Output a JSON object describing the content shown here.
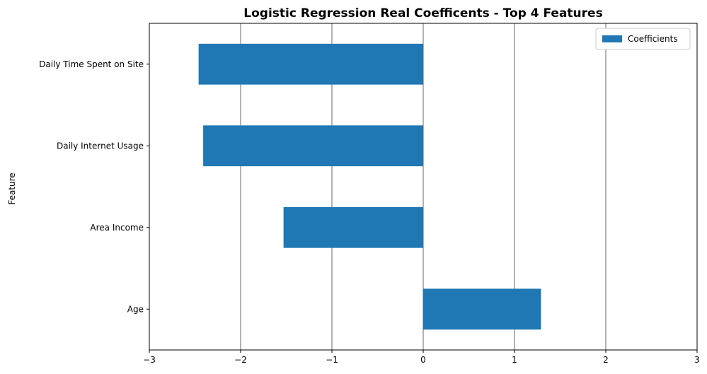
{
  "chart_data": {
    "type": "bar",
    "orientation": "horizontal",
    "title": "Logistic Regression Real Coefficents - Top 4 Features",
    "xlabel": "",
    "ylabel": "Feature",
    "categories": [
      "Daily Time Spent on Site",
      "Daily Internet Usage",
      "Area Income",
      "Age"
    ],
    "series": [
      {
        "name": "Coefficients",
        "values": [
          -2.46,
          -2.41,
          -1.53,
          1.29
        ]
      }
    ],
    "xlim": [
      -3,
      3
    ],
    "xticks": [
      -3,
      -2,
      -1,
      0,
      1,
      2,
      3
    ],
    "xtick_labels": [
      "−3",
      "−2",
      "−1",
      "0",
      "1",
      "2",
      "3"
    ],
    "grid": "vertical",
    "legend_position": "top-right",
    "colors": {
      "bar": "#1f77b4",
      "grid": "#808080"
    }
  }
}
